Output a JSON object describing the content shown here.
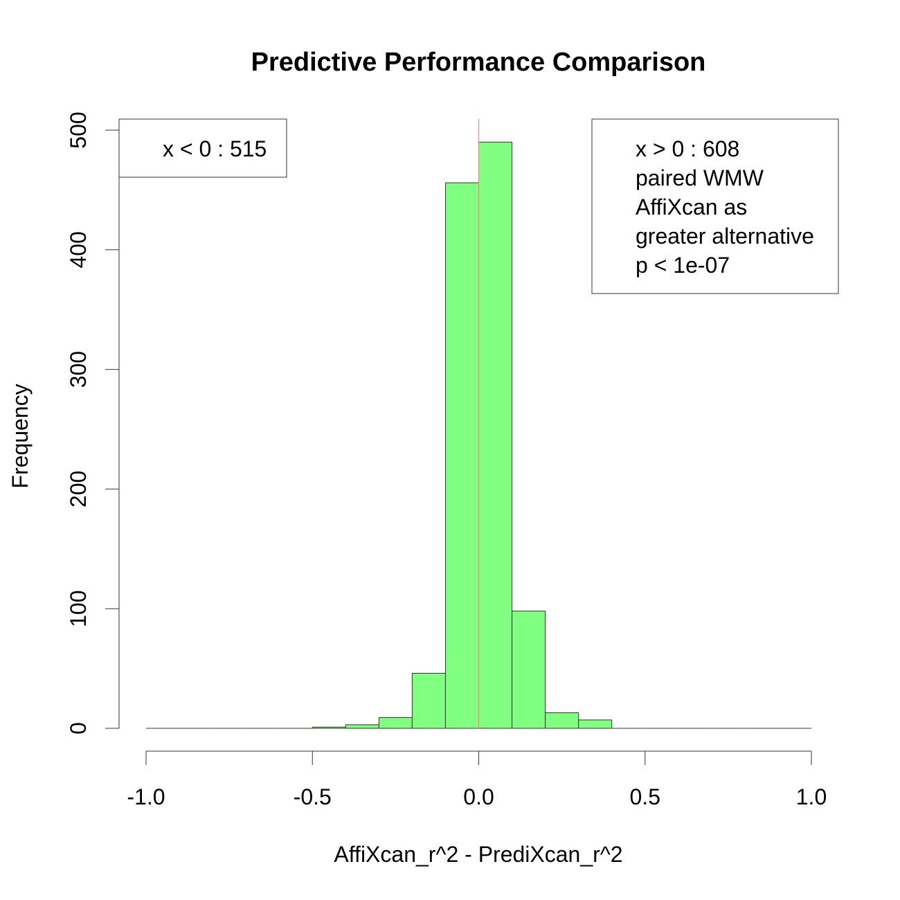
{
  "chart_data": {
    "type": "bar",
    "title": "Predictive Performance Comparison",
    "xlabel": "AffiXcan_r^2 - PrediXcan_r^2",
    "ylabel": "Frequency",
    "xlim": [
      -1.0,
      1.0
    ],
    "ylim": [
      0,
      500
    ],
    "x_ticks": [
      "-1.0",
      "-0.5",
      "0.0",
      "0.5",
      "1.0"
    ],
    "y_ticks": [
      "0",
      "100",
      "200",
      "300",
      "400",
      "500"
    ],
    "bin_edges": [
      -1.0,
      -0.9,
      -0.8,
      -0.7,
      -0.6,
      -0.5,
      -0.4,
      -0.3,
      -0.2,
      -0.1,
      0.0,
      0.1,
      0.2,
      0.3,
      0.4,
      0.5,
      0.6,
      0.7,
      0.8,
      0.9,
      1.0
    ],
    "values": [
      0,
      0,
      0,
      0,
      0,
      1,
      3,
      9,
      46,
      456,
      490,
      98,
      13,
      7,
      0,
      0,
      0,
      0,
      0,
      0
    ],
    "bar_color": "#80ff80",
    "reference_line": {
      "x": 0.0,
      "color": "#ff8080"
    },
    "legend_left": {
      "lines": [
        "x < 0 : 515"
      ]
    },
    "legend_right": {
      "lines": [
        "x > 0 : 608",
        "paired WMW",
        "AffiXcan as",
        "greater alternative",
        "p <  1e-07"
      ]
    }
  }
}
